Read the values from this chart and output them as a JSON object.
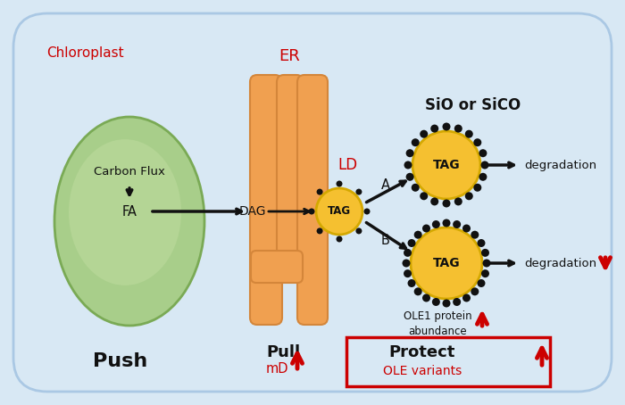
{
  "bg_color": "#d8e8f4",
  "chloroplast_color": "#a8ce8a",
  "chloroplast_edge": "#7aaa55",
  "chloroplast_inner": "#c0dca0",
  "er_color": "#f0a050",
  "er_edge": "#d4863a",
  "tag_color": "#f5c030",
  "tag_edge": "#d4a800",
  "dot_color": "#111111",
  "arrow_color": "#111111",
  "red_color": "#cc0000",
  "box_red": "#cc0000",
  "text_black": "#111111",
  "cell_edge": "#aac8e4",
  "chloroplast_label": "Chloroplast",
  "er_label": "ER",
  "ld_label": "LD",
  "sio_label": "SiO or SiCO",
  "push_label": "Push",
  "pull_label": "Pull",
  "md_label": "mD",
  "protect_label": "Protect",
  "ole_variants_label": "OLE variants",
  "ole1_label": "OLE1 protein\nabundance",
  "degradation": "degradation",
  "carbon_flux": "Carbon Flux",
  "fa_label": "FA",
  "dag_label": "DAG",
  "tag_label": "TAG",
  "a_label": "A",
  "b_label": "B",
  "figsize": [
    7.0,
    4.54
  ],
  "dpi": 100
}
